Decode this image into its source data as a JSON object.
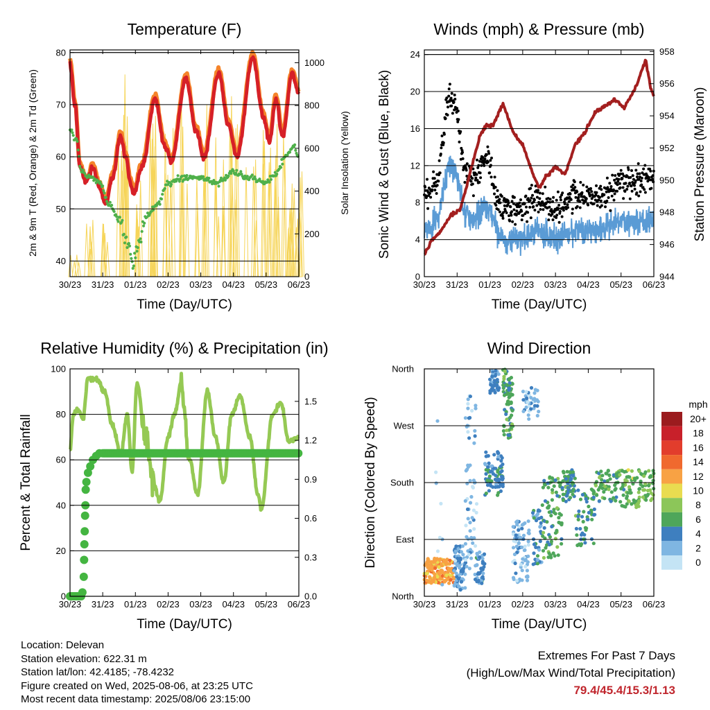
{
  "colors": {
    "temp2m": "#d62027",
    "temp9m": "#f5842a",
    "dewpoint": "#4fb04a",
    "insolation": "#f6d55a",
    "wind": "#5a9bd5",
    "gust": "#000000",
    "pressure": "#a31f1f",
    "rh": "#95c954",
    "precip": "#44b541"
  },
  "xticks": [
    "30/23",
    "31/23",
    "01/23",
    "02/23",
    "03/23",
    "04/23",
    "05/23",
    "06/23"
  ],
  "xlabel": "Time (Day/UTC)",
  "charts": {
    "temperature": {
      "title": "Temperature (F)",
      "ylabel": "2m & 9m T (Red, Orange) & 2m Td (Green)",
      "y2label": "Solar Insolation (Yellow)",
      "yticks": [
        "40",
        "50",
        "60",
        "70",
        "80"
      ],
      "y2ticks": [
        "0",
        "200",
        "400",
        "600",
        "800",
        "1000"
      ]
    },
    "winds": {
      "title": "Winds (mph) & Pressure (mb)",
      "ylabel": "Sonic Wind & Gust (Blue, Black)",
      "y2label": "Station Pressure (Maroon)",
      "yticks": [
        "0",
        "4",
        "8",
        "12",
        "16",
        "20",
        "24"
      ],
      "y2ticks": [
        "944",
        "946",
        "948",
        "950",
        "952",
        "954",
        "956",
        "958"
      ]
    },
    "humidity": {
      "title": "Relative Humidity (%) & Precipitation (in)",
      "ylabel": "Percent & Total Rainfall",
      "yticks": [
        "0",
        "20",
        "40",
        "60",
        "80",
        "100"
      ],
      "y2ticks": [
        "0.0",
        "0.3",
        "0.6",
        "0.9",
        "1.2",
        "1.5"
      ]
    },
    "direction": {
      "title": "Wind Direction",
      "ylabel": "Direction (Colored By Speed)",
      "yticks": [
        "North",
        "East",
        "South",
        "West",
        "North"
      ]
    }
  },
  "legend": {
    "title": "mph",
    "labels": [
      "20+",
      "18",
      "16",
      "14",
      "12",
      "10",
      "8",
      "6",
      "4",
      "2",
      "0"
    ],
    "colors": [
      "#9b1b1e",
      "#c8202a",
      "#e23d2c",
      "#f0692e",
      "#f8a244",
      "#e9dc50",
      "#8cc659",
      "#4ea65a",
      "#3e7fbf",
      "#7fb6e2",
      "#c4e4f5"
    ]
  },
  "info": {
    "location": "Location: Delevan",
    "elevation": "Station elevation: 622.31 m",
    "latlon": "Station lat/lon: 42.4185; -78.4232",
    "created": "Figure created on Wed, 2025-08-06, at 23:25 UTC",
    "recent": "Most recent data timestamp: 2025/08/06 23:15:00"
  },
  "extremes": {
    "line1": "Extremes For Past 7 Days",
    "line2": "(High/Low/Max Wind/Total Precipitation)",
    "values": "79.4/45.4/15.3/1.13"
  },
  "chart_data": [
    {
      "type": "line",
      "title": "Temperature (F)",
      "x": [
        "30/23",
        "31/23",
        "01/23",
        "02/23",
        "03/23",
        "04/23",
        "05/23",
        "06/23"
      ],
      "ylim": [
        37,
        80.5
      ],
      "y2lim": [
        0,
        1060
      ],
      "series": [
        {
          "name": "2m & 9m T (Red, Orange)",
          "values": [
            78,
            53,
            60,
            71,
            75,
            76,
            79,
            72
          ]
        },
        {
          "name": "2m Td (Green)",
          "values": [
            65,
            56,
            39,
            51,
            56,
            56,
            58,
            62
          ]
        },
        {
          "name": "Solar Insolation (Yellow)",
          "axis": "right",
          "values": [
            0,
            0,
            0,
            0,
            0,
            0,
            0,
            0
          ]
        }
      ]
    },
    {
      "type": "line",
      "title": "Winds (mph) & Pressure (mb)",
      "x": [
        "30/23",
        "31/23",
        "01/23",
        "02/23",
        "03/23",
        "04/23",
        "05/23",
        "06/23"
      ],
      "ylim": [
        0,
        24.5
      ],
      "y2lim": [
        944,
        958
      ],
      "series": [
        {
          "name": "Sonic Wind (Blue)",
          "values": [
            6,
            13,
            6,
            4,
            5,
            4,
            5,
            6
          ]
        },
        {
          "name": "Gust (Black)",
          "values": [
            9,
            19,
            12,
            8,
            9,
            8,
            9,
            10
          ]
        },
        {
          "name": "Station Pressure (Maroon)",
          "axis": "right",
          "values": [
            945.5,
            947.5,
            953.0,
            952.5,
            950.0,
            951.5,
            954.0,
            955.0
          ]
        }
      ]
    },
    {
      "type": "line",
      "title": "Relative Humidity (%) & Precipitation (in)",
      "x": [
        "30/23",
        "31/23",
        "01/23",
        "02/23",
        "03/23",
        "04/23",
        "05/23",
        "06/23"
      ],
      "ylim": [
        0,
        100
      ],
      "y2lim": [
        0,
        1.75
      ],
      "series": [
        {
          "name": "Relative Humidity",
          "values": [
            64,
            96,
            60,
            45,
            90,
            55,
            40,
            63
          ]
        },
        {
          "name": "Total Rainfall",
          "axis": "right",
          "values": [
            0.0,
            1.1,
            1.1,
            1.1,
            1.1,
            1.1,
            1.1,
            1.1
          ]
        }
      ]
    },
    {
      "type": "scatter",
      "title": "Wind Direction",
      "x": [
        "30/23",
        "31/23",
        "01/23",
        "02/23",
        "03/23",
        "04/23",
        "05/23",
        "06/23"
      ],
      "ylim": [
        0,
        360
      ],
      "yticks": [
        "North",
        "East",
        "South",
        "West",
        "North"
      ],
      "series": [
        {
          "name": "Direction (deg)",
          "values": [
            50,
            60,
            200,
            220,
            100,
            60,
            140,
            160
          ]
        }
      ]
    }
  ]
}
